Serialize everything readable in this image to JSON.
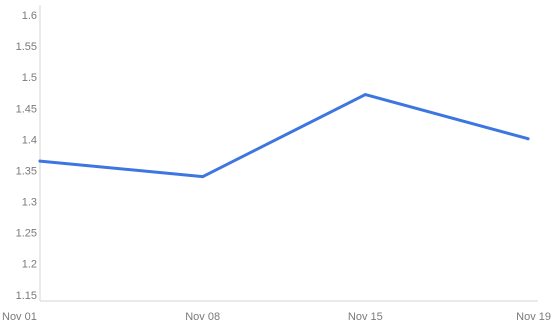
{
  "chart_data": {
    "type": "line",
    "categories": [
      "Nov 01",
      "Nov 08",
      "Nov 15",
      "Nov 19"
    ],
    "series": [
      {
        "values": [
          1.365,
          1.34,
          1.472,
          1.401
        ]
      }
    ],
    "ylim": [
      1.14,
      1.6
    ],
    "yticks": [
      1.15,
      1.2,
      1.25,
      1.3,
      1.35,
      1.4,
      1.45,
      1.5,
      1.55,
      1.6
    ],
    "ytick_labels": [
      "1.15",
      "1.2",
      "1.25",
      "1.3",
      "1.35",
      "1.4",
      "1.45",
      "1.5",
      "1.55",
      "1.6"
    ],
    "grid": false,
    "line_color": "#3d76e0",
    "axis_color": "#d6d6d6"
  }
}
